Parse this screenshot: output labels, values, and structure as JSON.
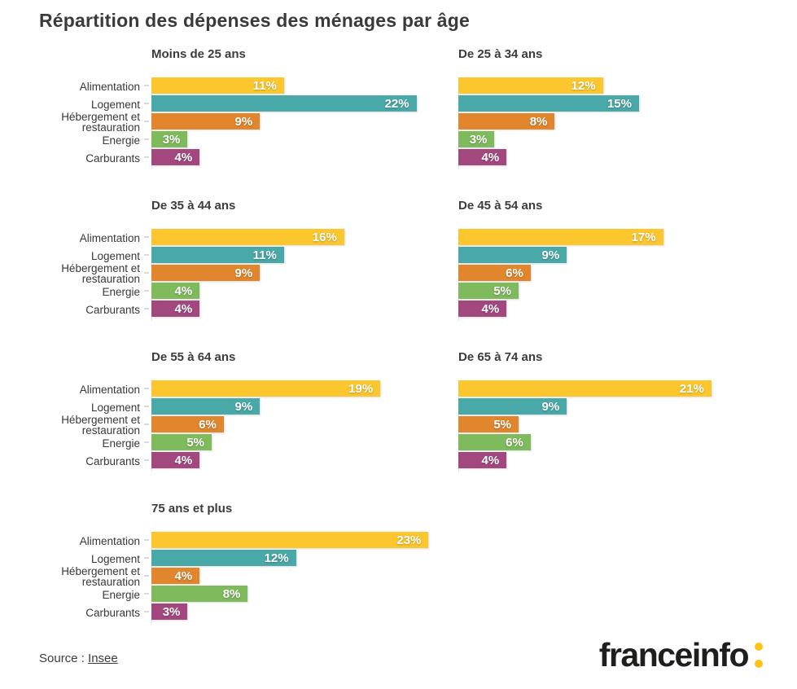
{
  "header": {
    "title": "Répartition des dépenses des ménages par âge"
  },
  "chart_data": {
    "type": "bar",
    "orientation": "horizontal",
    "title": "Répartition des dépenses des ménages par âge",
    "unit": "%",
    "grid": false,
    "legend": "none",
    "xlim": [
      0,
      24
    ],
    "categories": [
      "Alimentation",
      "Logement",
      "Hébergement et restauration",
      "Energie",
      "Carburants"
    ],
    "category_colors": [
      "#FCC62F",
      "#49A8A8",
      "#E1862C",
      "#7FBA5D",
      "#A3487F"
    ],
    "panels": [
      {
        "title": "Moins de 25 ans",
        "values": [
          11,
          22,
          9,
          3,
          4
        ],
        "labels_visible": true
      },
      {
        "title": "De 25 à 34 ans",
        "values": [
          12,
          15,
          8,
          3,
          4
        ],
        "labels_visible": false
      },
      {
        "title": "De 35 à 44 ans",
        "values": [
          16,
          11,
          9,
          4,
          4
        ],
        "labels_visible": true
      },
      {
        "title": "De 45 à 54 ans",
        "values": [
          17,
          9,
          6,
          5,
          4
        ],
        "labels_visible": false
      },
      {
        "title": "De 55 à 64 ans",
        "values": [
          19,
          9,
          6,
          5,
          4
        ],
        "labels_visible": true
      },
      {
        "title": "De 65 à 74 ans",
        "values": [
          21,
          9,
          5,
          6,
          4
        ],
        "labels_visible": false
      },
      {
        "title": "75 ans et plus",
        "values": [
          23,
          12,
          4,
          8,
          3
        ],
        "labels_visible": true
      }
    ]
  },
  "footer": {
    "source_label": "Source :",
    "source_link": "Insee",
    "logo_text": "franceinfo",
    "logo_text_color": "#1E1E1C",
    "logo_colon_color": "#FDC513"
  },
  "colors": {
    "title_text": "#3A3A3A",
    "bar_value_text": "#FFFFFF",
    "axis_tick": "#D9D9D9"
  }
}
